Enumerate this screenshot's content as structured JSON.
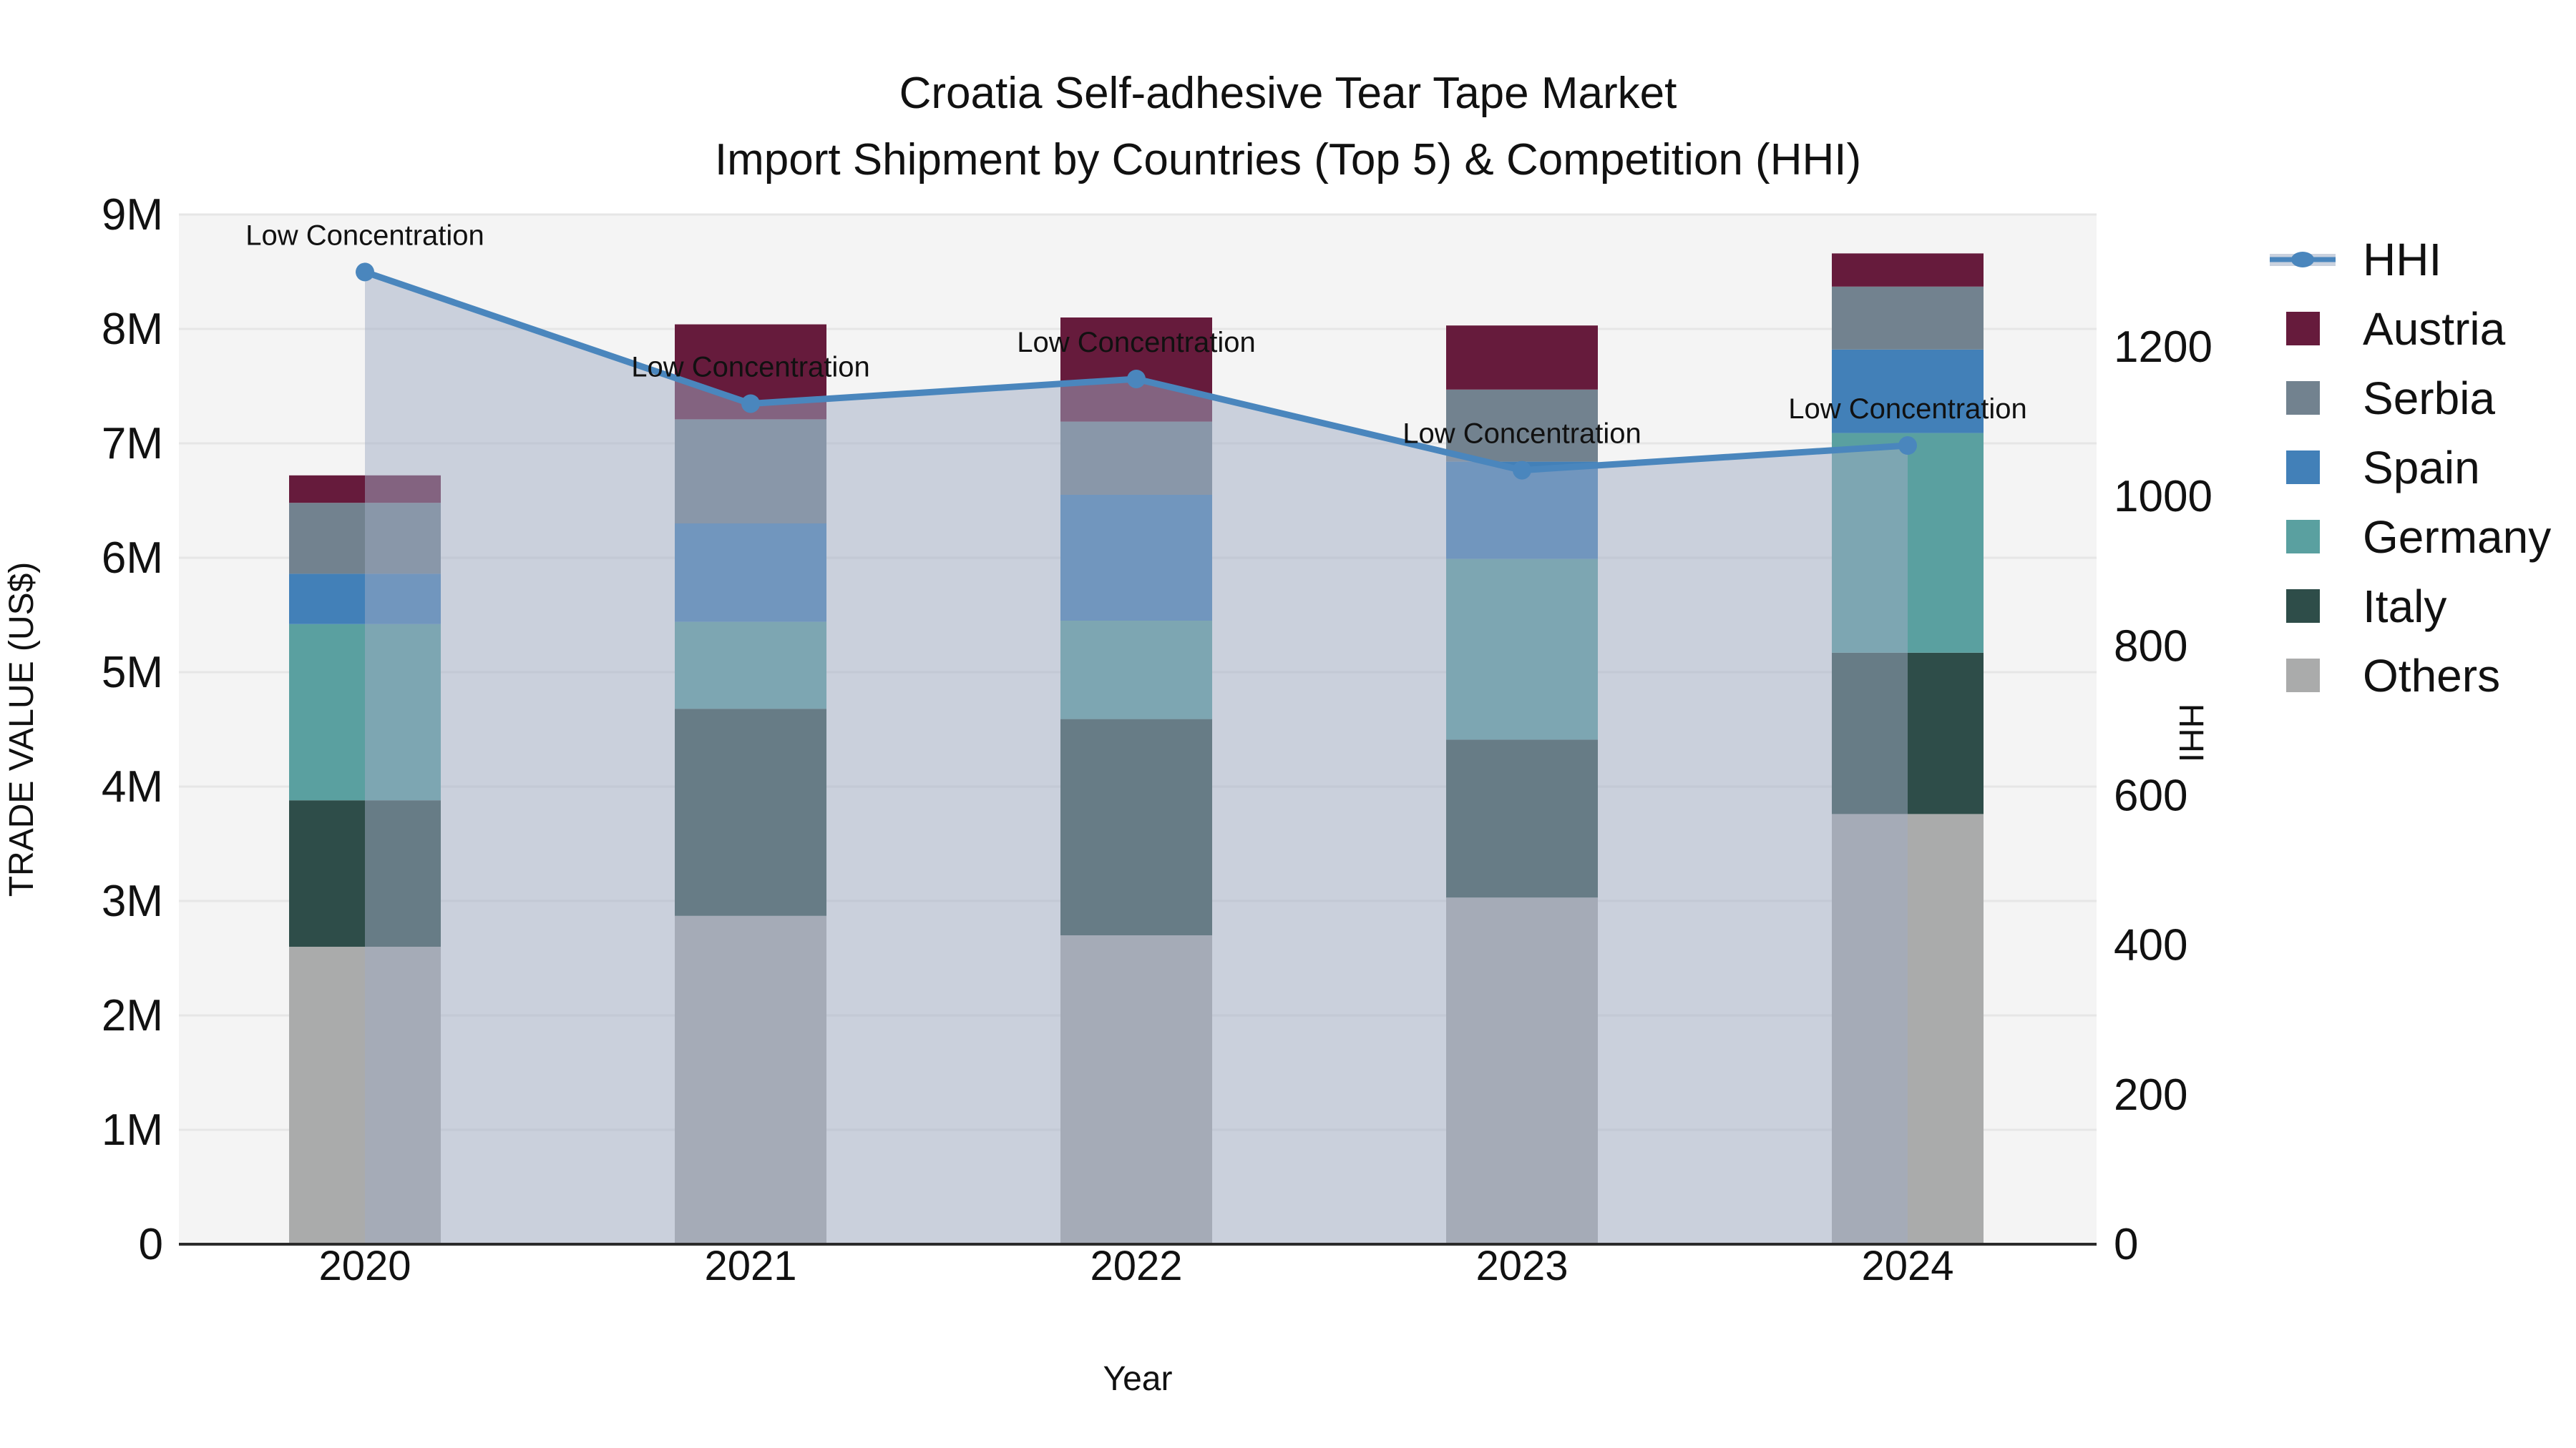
{
  "title": {
    "line1": "Croatia Self-adhesive Tear Tape Market",
    "line2": "Import Shipment by Countries (Top 5) & Competition (HHI)"
  },
  "chart_data": {
    "type": "bar",
    "subtype": "stacked-bars-with-line-overlay-and-area",
    "stacked": true,
    "categories": [
      "2020",
      "2021",
      "2022",
      "2023",
      "2024"
    ],
    "values_unit": "million US$",
    "series": [
      {
        "name": "Others",
        "values": [
          2.6,
          2.87,
          2.7,
          3.03,
          3.76
        ]
      },
      {
        "name": "Italy",
        "values": [
          1.28,
          1.81,
          1.89,
          1.38,
          1.41
        ]
      },
      {
        "name": "Germany",
        "values": [
          1.54,
          0.76,
          0.86,
          1.58,
          1.92
        ]
      },
      {
        "name": "Spain",
        "values": [
          0.44,
          0.86,
          1.1,
          0.85,
          0.73
        ]
      },
      {
        "name": "Serbia",
        "values": [
          0.62,
          0.91,
          0.64,
          0.63,
          0.55
        ]
      },
      {
        "name": "Austria",
        "values": [
          0.24,
          0.83,
          0.91,
          0.56,
          0.29
        ]
      }
    ],
    "stack_totals": [
      6.72,
      8.04,
      8.1,
      8.03,
      8.66
    ],
    "line_series": {
      "name": "HHI",
      "axis": "right",
      "values": [
        1300,
        1124,
        1157,
        1035,
        1068
      ],
      "area_fill": true,
      "marker": "circle"
    },
    "annotations": [
      {
        "text": "Low Concentration",
        "category": "2020"
      },
      {
        "text": "Low Concentration",
        "category": "2021"
      },
      {
        "text": "Low Concentration",
        "category": "2022"
      },
      {
        "text": "Low Concentration",
        "category": "2023"
      },
      {
        "text": "Low Concentration",
        "category": "2024"
      }
    ],
    "xlabel": "Year",
    "ylabel_left": "TRADE VALUE (US$)",
    "ylabel_right": "HHI",
    "yticks_left": [
      "0",
      "1M",
      "2M",
      "3M",
      "4M",
      "5M",
      "6M",
      "7M",
      "8M",
      "9M"
    ],
    "ylim_left": [
      0,
      9000000
    ],
    "yticks_right": [
      "0",
      "200",
      "400",
      "600",
      "800",
      "1000",
      "1200"
    ],
    "ylim_right": [
      0,
      1377
    ],
    "grid": "horizontal",
    "legend_position": "right-top",
    "legend": [
      {
        "label": "HHI",
        "key": "HHI"
      },
      {
        "label": "Austria",
        "key": "Austria"
      },
      {
        "label": "Serbia",
        "key": "Serbia"
      },
      {
        "label": "Spain",
        "key": "Spain"
      },
      {
        "label": "Germany",
        "key": "Germany"
      },
      {
        "label": "Italy",
        "key": "Italy"
      },
      {
        "label": "Others",
        "key": "Others"
      }
    ],
    "colors": {
      "Austria": "#661b3c",
      "Serbia": "#72828f",
      "Spain": "#4280b8",
      "Germany": "#5aa0a0",
      "Italy": "#2e4d49",
      "Others": "#aaabab",
      "HHI": "#4a86bd",
      "hhi_area": "rgba(160,172,195,0.5)",
      "hhi_legend_band": "#c9d1de",
      "plot_background": "#f4f4f4",
      "gridline": "#e6e6e6",
      "axis_line": "#2b2b2b",
      "text": "#111111"
    }
  }
}
